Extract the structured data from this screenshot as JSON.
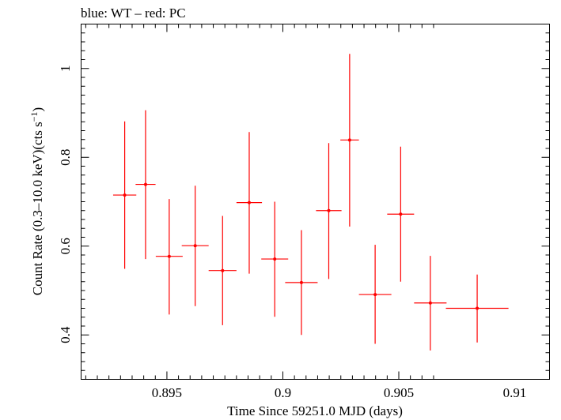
{
  "chart_data": {
    "type": "scatter",
    "title": "blue: WT – red: PC",
    "xlabel": "Time Since 59251.0 MJD (days)",
    "ylabel_main": "Count Rate (0.3–10.0 keV)(cts s",
    "ylabel_sup": "−1",
    "ylabel_end": ")",
    "xlim": [
      0.8913,
      0.9115
    ],
    "ylim": [
      0.3,
      1.1
    ],
    "xticks": [
      {
        "value": 0.895,
        "label": "0.895"
      },
      {
        "value": 0.9,
        "label": "0.9"
      },
      {
        "value": 0.905,
        "label": "0.905"
      },
      {
        "value": 0.91,
        "label": "0.91"
      }
    ],
    "yticks": [
      {
        "value": 0.4,
        "label": "0.4"
      },
      {
        "value": 0.6,
        "label": "0.6"
      },
      {
        "value": 0.8,
        "label": "0.8"
      },
      {
        "value": 1.0,
        "label": "1"
      }
    ],
    "series": [
      {
        "color": "#ff0000",
        "points": [
          {
            "x": 0.89318,
            "xerr": 0.0005,
            "y": 0.715,
            "ylo": 0.549,
            "yhi": 0.881
          },
          {
            "x": 0.89408,
            "xerr": 0.00043,
            "y": 0.739,
            "ylo": 0.571,
            "yhi": 0.906
          },
          {
            "x": 0.8951,
            "xerr": 0.00058,
            "y": 0.577,
            "ylo": 0.446,
            "yhi": 0.706
          },
          {
            "x": 0.89622,
            "xerr": 0.00058,
            "y": 0.601,
            "ylo": 0.465,
            "yhi": 0.736
          },
          {
            "x": 0.8974,
            "xerr": 0.0006,
            "y": 0.545,
            "ylo": 0.422,
            "yhi": 0.668
          },
          {
            "x": 0.89855,
            "xerr": 0.00055,
            "y": 0.698,
            "ylo": 0.538,
            "yhi": 0.857
          },
          {
            "x": 0.89965,
            "xerr": 0.00058,
            "y": 0.571,
            "ylo": 0.441,
            "yhi": 0.7
          },
          {
            "x": 0.9008,
            "xerr": 0.0007,
            "y": 0.518,
            "ylo": 0.4,
            "yhi": 0.636
          },
          {
            "x": 0.90198,
            "xerr": 0.00055,
            "y": 0.68,
            "ylo": 0.526,
            "yhi": 0.832
          },
          {
            "x": 0.90288,
            "xerr": 0.0004,
            "y": 0.839,
            "ylo": 0.644,
            "yhi": 1.033
          },
          {
            "x": 0.90398,
            "xerr": 0.0007,
            "y": 0.491,
            "ylo": 0.38,
            "yhi": 0.603
          },
          {
            "x": 0.90508,
            "xerr": 0.00058,
            "y": 0.672,
            "ylo": 0.52,
            "yhi": 0.824
          },
          {
            "x": 0.90636,
            "xerr": 0.0007,
            "y": 0.472,
            "ylo": 0.365,
            "yhi": 0.578
          },
          {
            "x": 0.90838,
            "xerr": 0.00135,
            "y": 0.46,
            "ylo": 0.383,
            "yhi": 0.536
          }
        ]
      }
    ]
  }
}
